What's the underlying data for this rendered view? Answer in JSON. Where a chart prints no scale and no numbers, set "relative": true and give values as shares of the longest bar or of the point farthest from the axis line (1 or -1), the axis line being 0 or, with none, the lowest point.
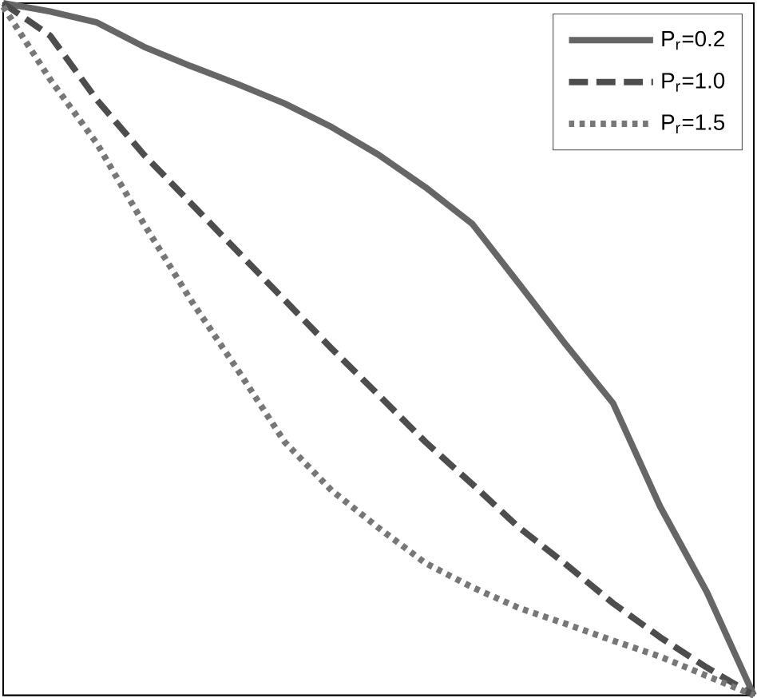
{
  "chart_data": {
    "type": "line",
    "relative": true,
    "legend": "top right",
    "categories": [
      null,
      null,
      null,
      null,
      null,
      null,
      null,
      null,
      null,
      null,
      null,
      null,
      null,
      null,
      null,
      null,
      null
    ],
    "series": [
      {
        "name": "P$_{r}$=0.2",
        "color": "#666666",
        "line_style": "solid",
        "values": [
          1.0,
          0.988,
          0.972,
          0.937,
          0.909,
          0.883,
          0.855,
          0.821,
          0.781,
          0.734,
          0.681,
          0.594,
          0.506,
          0.422,
          0.273,
          0.149,
          0.0
        ]
      },
      {
        "name": "P$_{r}$=1.0",
        "color": "#4d4d4d",
        "line_style": "dashed",
        "values": [
          1.0,
          0.953,
          0.86,
          0.781,
          0.711,
          0.641,
          0.571,
          0.501,
          0.434,
          0.366,
          0.305,
          0.242,
          0.189,
          0.133,
          0.084,
          0.04,
          0.0
        ]
      },
      {
        "name": "P$_{r}$=1.5",
        "color": "#777777",
        "line_style": "dotted",
        "values": [
          0.995,
          0.89,
          0.797,
          0.681,
          0.571,
          0.47,
          0.366,
          0.296,
          0.242,
          0.191,
          0.156,
          0.126,
          0.103,
          0.079,
          0.056,
          0.028,
          0.0
        ]
      }
    ]
  }
}
